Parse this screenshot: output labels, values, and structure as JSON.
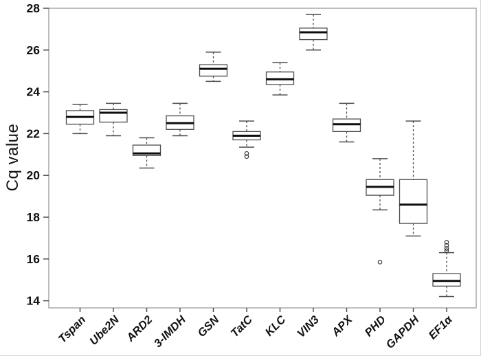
{
  "chart_data": {
    "type": "boxplot",
    "title": "",
    "xlabel": "",
    "ylabel": "Cq value",
    "ylim": [
      13.6,
      28
    ],
    "yticks": [
      28,
      26,
      24,
      22,
      20,
      18,
      16,
      14
    ],
    "grid": false,
    "legend": "none",
    "categories": [
      "Tspan",
      "Ube2N",
      "ARD2",
      "3-IMDH",
      "GSN",
      "TatC",
      "KLC",
      "VIN3",
      "APX",
      "PHD",
      "GAPDH",
      "EF1α"
    ],
    "boxes": [
      {
        "category": "Tspan",
        "whisker_low": 22.0,
        "q1": 22.45,
        "median": 22.8,
        "q3": 23.1,
        "whisker_high": 23.4,
        "outliers": []
      },
      {
        "category": "Ube2N",
        "whisker_low": 21.9,
        "q1": 22.55,
        "median": 23.0,
        "q3": 23.15,
        "whisker_high": 23.45,
        "outliers": []
      },
      {
        "category": "ARD2",
        "whisker_low": 20.35,
        "q1": 20.95,
        "median": 21.05,
        "q3": 21.45,
        "whisker_high": 21.8,
        "outliers": []
      },
      {
        "category": "3-IMDH",
        "whisker_low": 21.9,
        "q1": 22.2,
        "median": 22.5,
        "q3": 22.85,
        "whisker_high": 23.45,
        "outliers": []
      },
      {
        "category": "GSN",
        "whisker_low": 24.5,
        "q1": 24.75,
        "median": 25.1,
        "q3": 25.3,
        "whisker_high": 25.9,
        "outliers": []
      },
      {
        "category": "TatC",
        "whisker_low": 21.35,
        "q1": 21.7,
        "median": 21.9,
        "q3": 22.1,
        "whisker_high": 22.6,
        "outliers": [
          21.05,
          20.9
        ]
      },
      {
        "category": "KLC",
        "whisker_low": 23.85,
        "q1": 24.35,
        "median": 24.6,
        "q3": 24.95,
        "whisker_high": 25.4,
        "outliers": []
      },
      {
        "category": "VIN3",
        "whisker_low": 26.0,
        "q1": 26.5,
        "median": 26.85,
        "q3": 27.05,
        "whisker_high": 27.7,
        "outliers": []
      },
      {
        "category": "APX",
        "whisker_low": 21.6,
        "q1": 22.1,
        "median": 22.45,
        "q3": 22.7,
        "whisker_high": 23.45,
        "outliers": []
      },
      {
        "category": "PHD",
        "whisker_low": 18.35,
        "q1": 19.05,
        "median": 19.45,
        "q3": 19.8,
        "whisker_high": 20.8,
        "outliers": [
          15.85
        ]
      },
      {
        "category": "GAPDH",
        "whisker_low": 17.1,
        "q1": 17.7,
        "median": 18.6,
        "q3": 19.8,
        "whisker_high": 22.6,
        "outliers": []
      },
      {
        "category": "EF1α",
        "whisker_low": 14.2,
        "q1": 14.7,
        "median": 14.95,
        "q3": 15.3,
        "whisker_high": 16.3,
        "outliers": [
          16.4,
          16.5,
          16.65,
          16.8
        ]
      }
    ],
    "colors": {
      "background": "#ffffff",
      "box_fill": "#ffffff",
      "box_stroke": "#4d4d4d",
      "median": "#0d0d0d",
      "whisker": "#4d4d4d",
      "outlier": "#3a3a3a",
      "frame": "#9a9a9a",
      "tick": "#4d4d4d",
      "text": "#111111"
    }
  }
}
